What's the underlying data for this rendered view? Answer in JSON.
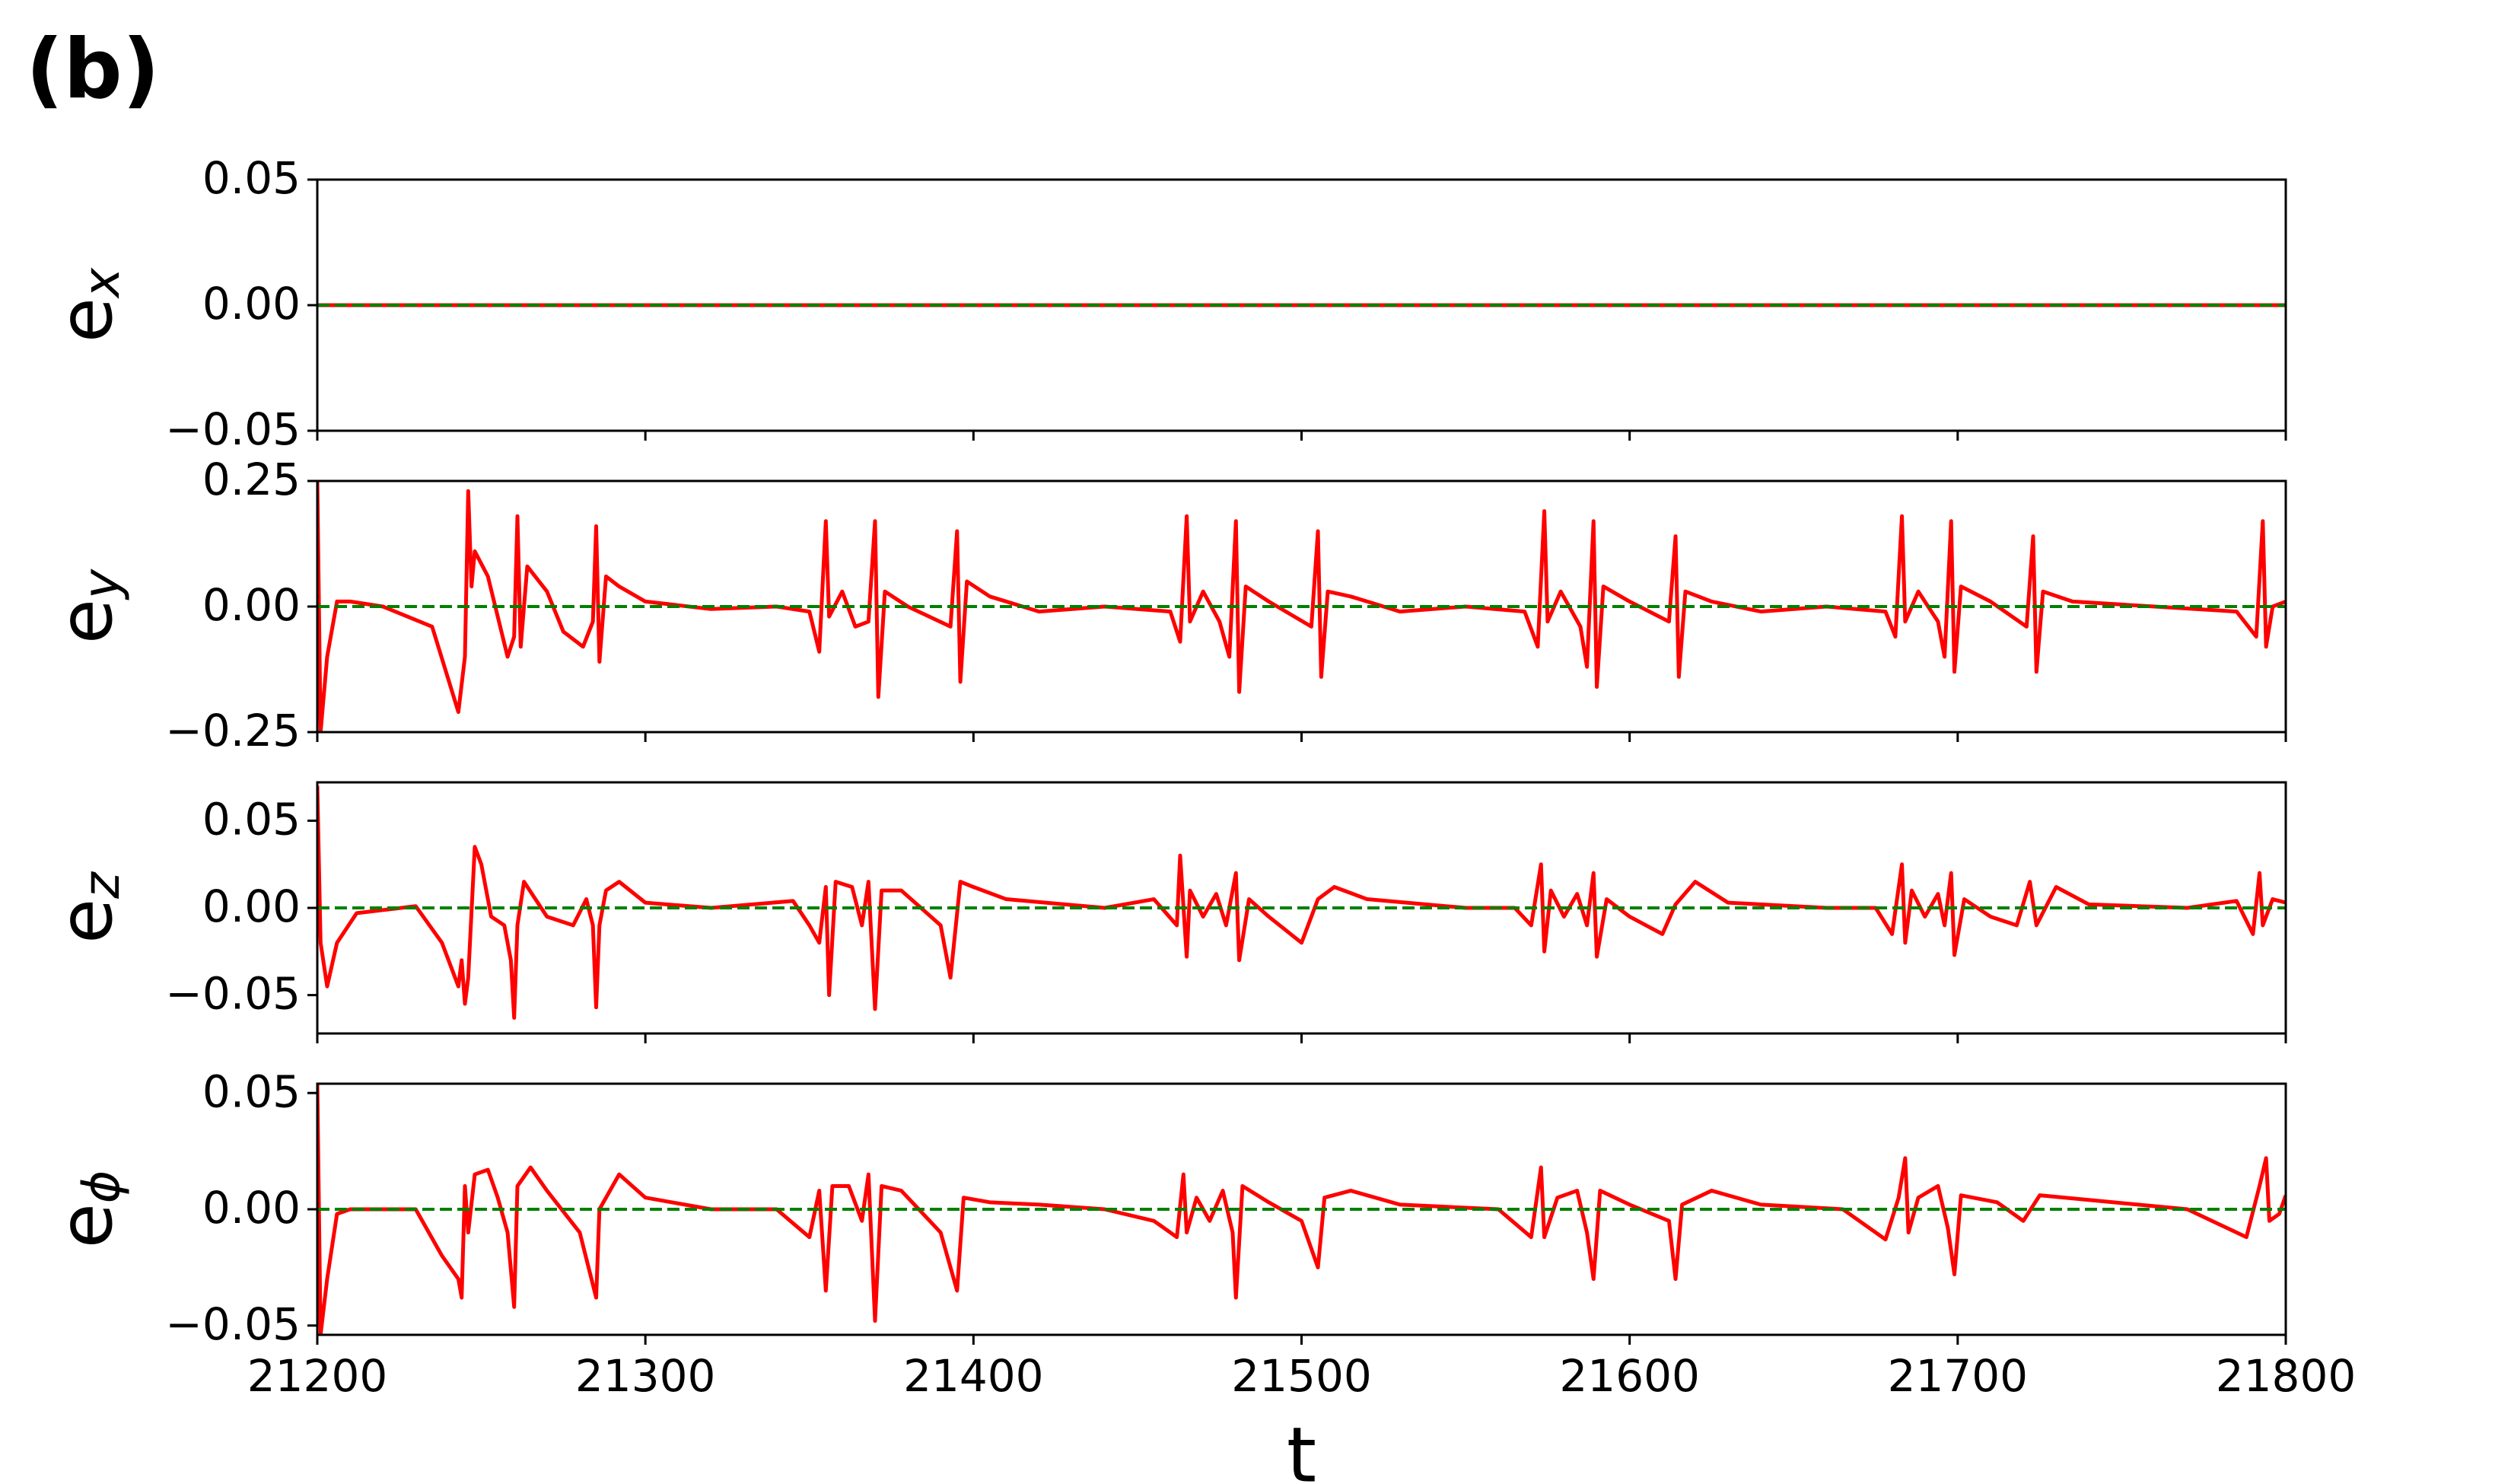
{
  "panel_label": "(b)",
  "sharex": true,
  "chart_data": [
    {
      "type": "line",
      "ylabel": "e",
      "ylabel_subscript": "x",
      "x": [
        21200,
        21800
      ],
      "series": [
        {
          "color": "#ff0000",
          "values": [
            0,
            0
          ]
        }
      ],
      "reference_line": {
        "value": 0,
        "color": "#008000",
        "style": "dashed"
      },
      "xlim": [
        21200,
        21800
      ],
      "ylim": [
        -0.05,
        0.05
      ],
      "yticks": [
        {
          "value": -0.05,
          "label": "−0.05"
        },
        {
          "value": 0,
          "label": "0.00"
        },
        0.05
      ]
    },
    {
      "type": "line",
      "ylabel": "e",
      "ylabel_subscript": "y",
      "x": [
        21200,
        21201,
        21203,
        21206,
        21210,
        21220,
        21235,
        21243,
        21245,
        21246,
        21247,
        21248,
        21252,
        21258,
        21260,
        21261,
        21262,
        21264,
        21270,
        21275,
        21281,
        21284,
        21285,
        21286,
        21288,
        21292,
        21300,
        21320,
        21340,
        21350,
        21353,
        21355,
        21356,
        21360,
        21364,
        21368,
        21370,
        21371,
        21373,
        21380,
        21393,
        21395,
        21396,
        21398,
        21405,
        21420,
        21440,
        21460,
        21463,
        21465,
        21466,
        21470,
        21475,
        21478,
        21480,
        21481,
        21483,
        21490,
        21503,
        21505,
        21506,
        21508,
        21515,
        21530,
        21550,
        21568,
        21572,
        21574,
        21575,
        21579,
        21585,
        21587,
        21589,
        21590,
        21592,
        21600,
        21612,
        21614,
        21615,
        21617,
        21625,
        21640,
        21660,
        21678,
        21681,
        21683,
        21684,
        21688,
        21694,
        21696,
        21698,
        21699,
        21701,
        21710,
        21721,
        21723,
        21724,
        21726,
        21735,
        21760,
        21785,
        21791,
        21793,
        21794,
        21796,
        21800
      ],
      "series": [
        {
          "color": "#ff0000",
          "values": [
            0.25,
            -0.25,
            -0.1,
            0.01,
            0.01,
            0.0,
            -0.04,
            -0.21,
            -0.1,
            0.23,
            0.04,
            0.11,
            0.06,
            -0.1,
            -0.06,
            0.18,
            -0.08,
            0.08,
            0.03,
            -0.05,
            -0.08,
            -0.03,
            0.16,
            -0.11,
            0.06,
            0.04,
            0.01,
            -0.005,
            0.0,
            -0.01,
            -0.09,
            0.17,
            -0.02,
            0.03,
            -0.04,
            -0.03,
            0.17,
            -0.18,
            0.03,
            0.0,
            -0.04,
            0.15,
            -0.15,
            0.05,
            0.02,
            -0.01,
            0.0,
            -0.01,
            -0.07,
            0.18,
            -0.03,
            0.03,
            -0.03,
            -0.1,
            0.17,
            -0.17,
            0.04,
            0.01,
            -0.04,
            0.15,
            -0.14,
            0.03,
            0.02,
            -0.01,
            0.0,
            -0.01,
            -0.08,
            0.19,
            -0.03,
            0.03,
            -0.04,
            -0.12,
            0.17,
            -0.16,
            0.04,
            0.01,
            -0.03,
            0.14,
            -0.14,
            0.03,
            0.01,
            -0.01,
            0.0,
            -0.01,
            -0.06,
            0.18,
            -0.03,
            0.03,
            -0.03,
            -0.1,
            0.17,
            -0.13,
            0.04,
            0.01,
            -0.04,
            0.14,
            -0.13,
            0.03,
            0.01,
            0.0,
            -0.01,
            -0.06,
            0.17,
            -0.08,
            0.0,
            0.01
          ]
        }
      ],
      "reference_line": {
        "value": 0,
        "color": "#008000",
        "style": "dashed"
      },
      "xlim": [
        21200,
        21800
      ],
      "ylim": [
        -0.25,
        0.25
      ],
      "yticks": [
        {
          "value": -0.25,
          "label": "−0.25"
        },
        {
          "value": 0,
          "label": "0.00"
        },
        0.25
      ]
    },
    {
      "type": "line",
      "ylabel": "e",
      "ylabel_subscript": "z",
      "x": [
        21200,
        21201,
        21203,
        21206,
        21212,
        21230,
        21238,
        21243,
        21244,
        21245,
        21246,
        21248,
        21250,
        21253,
        21257,
        21259,
        21260,
        21261,
        21263,
        21270,
        21278,
        21282,
        21284,
        21285,
        21286,
        21288,
        21292,
        21300,
        21320,
        21345,
        21350,
        21353,
        21355,
        21356,
        21358,
        21363,
        21366,
        21368,
        21370,
        21372,
        21378,
        21390,
        21393,
        21396,
        21400,
        21410,
        21440,
        21455,
        21462,
        21463,
        21465,
        21466,
        21470,
        21474,
        21477,
        21480,
        21481,
        21484,
        21490,
        21500,
        21505,
        21510,
        21520,
        21550,
        21565,
        21570,
        21573,
        21574,
        21576,
        21580,
        21584,
        21587,
        21589,
        21590,
        21593,
        21600,
        21610,
        21614,
        21620,
        21630,
        21660,
        21675,
        21680,
        21683,
        21684,
        21686,
        21690,
        21694,
        21696,
        21698,
        21699,
        21702,
        21710,
        21718,
        21722,
        21724,
        21730,
        21740,
        21770,
        21785,
        21790,
        21792,
        21793,
        21796,
        21800
      ],
      "series": [
        {
          "color": "#ff0000",
          "values": [
            0.07,
            -0.02,
            -0.045,
            -0.02,
            -0.003,
            0.001,
            -0.02,
            -0.045,
            -0.03,
            -0.055,
            -0.04,
            0.035,
            0.025,
            -0.005,
            -0.01,
            -0.03,
            -0.063,
            -0.01,
            0.015,
            -0.005,
            -0.01,
            0.005,
            -0.01,
            -0.057,
            -0.01,
            0.01,
            0.015,
            0.003,
            0.0,
            0.004,
            -0.01,
            -0.02,
            0.012,
            -0.05,
            0.015,
            0.012,
            -0.01,
            0.015,
            -0.058,
            0.01,
            0.01,
            -0.01,
            -0.04,
            0.015,
            0.012,
            0.005,
            0.0,
            0.005,
            -0.01,
            0.03,
            -0.028,
            0.01,
            -0.005,
            0.008,
            -0.01,
            0.02,
            -0.03,
            0.005,
            -0.005,
            -0.02,
            0.005,
            0.012,
            0.005,
            0.0,
            0.0,
            -0.01,
            0.025,
            -0.025,
            0.01,
            -0.005,
            0.008,
            -0.01,
            0.02,
            -0.028,
            0.005,
            -0.005,
            -0.015,
            0.002,
            0.015,
            0.003,
            0.0,
            0.0,
            -0.015,
            0.025,
            -0.02,
            0.01,
            -0.005,
            0.008,
            -0.01,
            0.02,
            -0.027,
            0.005,
            -0.005,
            -0.01,
            0.015,
            -0.01,
            0.012,
            0.002,
            0.0,
            0.004,
            -0.015,
            0.02,
            -0.01,
            0.005,
            0.003
          ]
        }
      ],
      "reference_line": {
        "value": 0,
        "color": "#008000",
        "style": "dashed"
      },
      "xlim": [
        21200,
        21800
      ],
      "ylim": [
        -0.072,
        0.072
      ],
      "yticks": [
        {
          "value": -0.05,
          "label": "−0.05"
        },
        {
          "value": 0,
          "label": "0.00"
        },
        0.05
      ]
    },
    {
      "type": "line",
      "ylabel": "e",
      "ylabel_subscript": "ϕ",
      "x": [
        21200,
        21201,
        21203,
        21206,
        21210,
        21230,
        21238,
        21243,
        21244,
        21245,
        21246,
        21248,
        21252,
        21255,
        21258,
        21260,
        21261,
        21265,
        21270,
        21280,
        21285,
        21286,
        21288,
        21292,
        21300,
        21320,
        21340,
        21350,
        21353,
        21355,
        21357,
        21362,
        21366,
        21368,
        21370,
        21372,
        21378,
        21390,
        21395,
        21397,
        21405,
        21420,
        21440,
        21455,
        21462,
        21464,
        21465,
        21468,
        21472,
        21476,
        21479,
        21480,
        21482,
        21490,
        21500,
        21505,
        21507,
        21515,
        21530,
        21560,
        21570,
        21573,
        21574,
        21578,
        21584,
        21587,
        21589,
        21591,
        21600,
        21612,
        21614,
        21616,
        21625,
        21640,
        21665,
        21678,
        21682,
        21684,
        21685,
        21688,
        21694,
        21697,
        21699,
        21701,
        21712,
        21720,
        21725,
        21740,
        21770,
        21788,
        21792,
        21794,
        21795,
        21798,
        21800
      ],
      "series": [
        {
          "color": "#ff0000",
          "values": [
            0.054,
            -0.054,
            -0.03,
            -0.002,
            0.0,
            0.0,
            -0.02,
            -0.03,
            -0.038,
            0.01,
            -0.01,
            0.015,
            0.017,
            0.005,
            -0.01,
            -0.042,
            0.01,
            0.018,
            0.008,
            -0.01,
            -0.038,
            0.0,
            0.005,
            0.015,
            0.005,
            0.0,
            0.0,
            -0.012,
            0.008,
            -0.035,
            0.01,
            0.01,
            -0.005,
            0.015,
            -0.048,
            0.01,
            0.008,
            -0.01,
            -0.035,
            0.005,
            0.003,
            0.002,
            0.0,
            -0.005,
            -0.012,
            0.015,
            -0.01,
            0.005,
            -0.005,
            0.008,
            -0.01,
            -0.038,
            0.01,
            0.003,
            -0.005,
            -0.025,
            0.005,
            0.008,
            0.002,
            0.0,
            -0.012,
            0.018,
            -0.012,
            0.005,
            0.008,
            -0.01,
            -0.03,
            0.008,
            0.002,
            -0.005,
            -0.03,
            0.002,
            0.008,
            0.002,
            0.0,
            -0.013,
            0.005,
            0.022,
            -0.01,
            0.005,
            0.01,
            -0.008,
            -0.028,
            0.006,
            0.003,
            -0.005,
            0.006,
            0.004,
            0.0,
            -0.012,
            0.01,
            0.022,
            -0.005,
            -0.002,
            0.006
          ]
        }
      ],
      "reference_line": {
        "value": 0,
        "color": "#008000",
        "style": "dashed"
      },
      "xlim": [
        21200,
        21800
      ],
      "ylim": [
        -0.054,
        0.054
      ],
      "yticks": [
        {
          "value": -0.05,
          "label": "−0.05"
        },
        {
          "value": 0,
          "label": "0.00"
        },
        0.05
      ],
      "xlabel": "t",
      "xticks": [
        21200,
        21300,
        21400,
        21500,
        21600,
        21700,
        21800
      ]
    }
  ]
}
